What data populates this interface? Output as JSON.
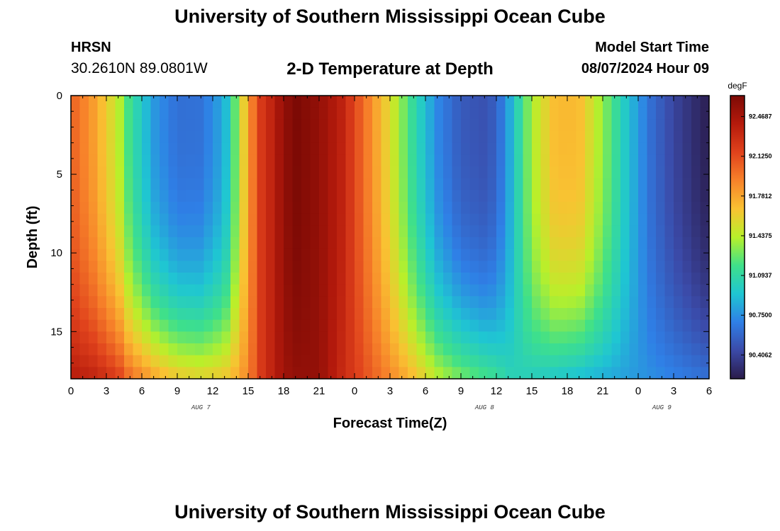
{
  "header": {
    "title": "University of Southern Mississippi Ocean Cube",
    "station": "HRSN",
    "coordinates": "30.2610N  89.0801W",
    "chart_title": "2-D Temperature at Depth",
    "model_start_label": "Model Start Time",
    "model_start_value": "08/07/2024 Hour 09"
  },
  "footer": {
    "title": "University of Southern Mississippi Ocean Cube"
  },
  "colors": {
    "colormap": [
      "#2a1b4a",
      "#3b4aa8",
      "#2f7fe6",
      "#1fc6d2",
      "#3fe08a",
      "#b8f02a",
      "#f9c232",
      "#f7822a",
      "#e0421c",
      "#b51a0c",
      "#7c0a05"
    ]
  },
  "chart_data": {
    "type": "heatmap",
    "title": "2-D Temperature at Depth",
    "xlabel": "Forecast Time(Z)",
    "ylabel": "Depth (ft)",
    "x_tick_labels": [
      "0",
      "3",
      "6",
      "9",
      "12",
      "15",
      "18",
      "21",
      "0",
      "3",
      "6",
      "9",
      "12",
      "15",
      "18",
      "21",
      "0",
      "3",
      "6"
    ],
    "date_labels": [
      {
        "label": "AUG 7",
        "hour_index": 11
      },
      {
        "label": "AUG 8",
        "hour_index": 35
      },
      {
        "label": "AUG 9",
        "hour_index": 50
      }
    ],
    "xlim_hours": [
      0,
      54
    ],
    "y_tick_labels": [
      "0",
      "5",
      "10",
      "15"
    ],
    "y_tick_values": [
      0,
      5,
      10,
      15
    ],
    "ylim": [
      0,
      18
    ],
    "y_inverted": true,
    "colorbar": {
      "unit": "degF",
      "tick_labels": [
        "92.4687",
        "92.1250",
        "91.7812",
        "91.4375",
        "91.0937",
        "90.7500",
        "90.4062"
      ],
      "tick_values": [
        92.4687,
        92.125,
        91.7812,
        91.4375,
        91.0937,
        90.75,
        90.4062
      ],
      "range": [
        90.2,
        92.65
      ]
    },
    "time_columns": [
      {
        "hour": 0,
        "surface": 92.05,
        "bottom": 92.4
      },
      {
        "hour": 2,
        "surface": 91.8,
        "bottom": 92.35
      },
      {
        "hour": 4,
        "surface": 91.45,
        "bottom": 92.2
      },
      {
        "hour": 5,
        "surface": 91.15,
        "bottom": 92.0
      },
      {
        "hour": 7,
        "surface": 90.78,
        "bottom": 91.8
      },
      {
        "hour": 9,
        "surface": 90.62,
        "bottom": 91.65
      },
      {
        "hour": 11,
        "surface": 90.63,
        "bottom": 91.6
      },
      {
        "hour": 13,
        "surface": 90.85,
        "bottom": 91.65
      },
      {
        "hour": 14,
        "surface": 91.3,
        "bottom": 91.75
      },
      {
        "hour": 15,
        "surface": 91.8,
        "bottom": 91.9
      },
      {
        "hour": 16,
        "surface": 92.2,
        "bottom": 92.2
      },
      {
        "hour": 17,
        "surface": 92.35,
        "bottom": 92.35
      },
      {
        "hour": 18,
        "surface": 92.55,
        "bottom": 92.5
      },
      {
        "hour": 19,
        "surface": 92.65,
        "bottom": 92.55
      },
      {
        "hour": 21,
        "surface": 92.55,
        "bottom": 92.55
      },
      {
        "hour": 23,
        "surface": 92.35,
        "bottom": 92.3
      },
      {
        "hour": 25,
        "surface": 91.95,
        "bottom": 92.1
      },
      {
        "hour": 27,
        "surface": 91.55,
        "bottom": 91.9
      },
      {
        "hour": 29,
        "surface": 91.1,
        "bottom": 91.7
      },
      {
        "hour": 31,
        "surface": 90.72,
        "bottom": 91.45
      },
      {
        "hour": 33,
        "surface": 90.52,
        "bottom": 91.3
      },
      {
        "hour": 35,
        "surface": 90.48,
        "bottom": 91.2
      },
      {
        "hour": 36,
        "surface": 90.55,
        "bottom": 91.15
      },
      {
        "hour": 37,
        "surface": 90.8,
        "bottom": 91.05
      },
      {
        "hour": 39,
        "surface": 91.4,
        "bottom": 91.0
      },
      {
        "hour": 41,
        "surface": 91.7,
        "bottom": 90.95
      },
      {
        "hour": 43,
        "surface": 91.7,
        "bottom": 90.9
      },
      {
        "hour": 45,
        "surface": 91.35,
        "bottom": 90.85
      },
      {
        "hour": 47,
        "surface": 90.95,
        "bottom": 90.8
      },
      {
        "hour": 49,
        "surface": 90.62,
        "bottom": 90.75
      },
      {
        "hour": 51,
        "surface": 90.42,
        "bottom": 90.7
      },
      {
        "hour": 53,
        "surface": 90.28,
        "bottom": 90.65
      },
      {
        "hour": 54,
        "surface": 90.22,
        "bottom": 90.62
      }
    ]
  }
}
